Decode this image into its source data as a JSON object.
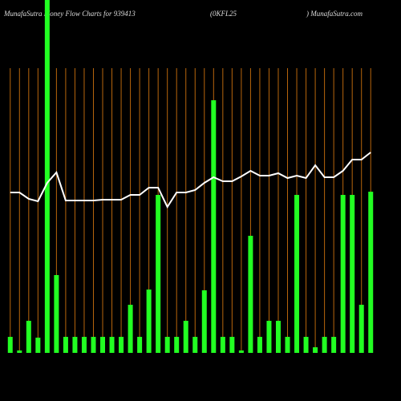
{
  "chart_data": {
    "type": "bar",
    "title": "MunafaSutra  Money Flow  Charts for 939413",
    "subtitle": "(0KFL25",
    "site": ") MunafaSutra.com",
    "categories": [
      null,
      null,
      null,
      null,
      null,
      null,
      null,
      null,
      null,
      null,
      null,
      null,
      null,
      null,
      null,
      null,
      null,
      null,
      null,
      null,
      null,
      null,
      null,
      null,
      null,
      null,
      null,
      null,
      null,
      null,
      null,
      null,
      null,
      null,
      null,
      null,
      null,
      null,
      null,
      null
    ],
    "ylim": [
      0,
      440
    ],
    "series": [
      {
        "type": "bar",
        "color": "#22ff22",
        "values": [
          20,
          3,
          40,
          19,
          440,
          97,
          20,
          20,
          20,
          20,
          20,
          20,
          20,
          60,
          20,
          79,
          197,
          20,
          20,
          40,
          20,
          78,
          315,
          20,
          20,
          3,
          146,
          20,
          40,
          40,
          20,
          197,
          20,
          7,
          20,
          20,
          197,
          197,
          60,
          201
        ]
      },
      {
        "type": "line",
        "color": "#ffffff",
        "values": [
          200,
          200,
          192,
          189,
          212,
          225,
          190,
          190,
          190,
          190,
          191,
          191,
          191,
          197,
          197,
          206,
          206,
          182,
          200,
          200,
          203,
          212,
          219,
          214,
          214,
          220,
          227,
          221,
          221,
          224,
          218,
          221,
          218,
          234,
          219,
          219,
          227,
          241,
          241,
          250
        ]
      }
    ]
  }
}
